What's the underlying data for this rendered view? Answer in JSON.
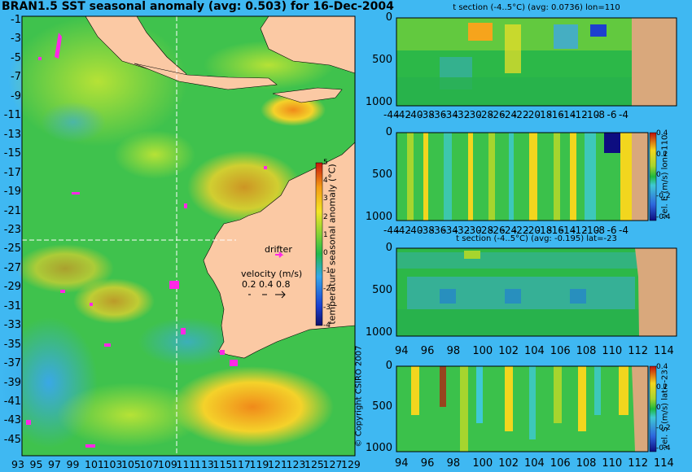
{
  "title": "BRAN1.5 SST seasonal anomaly (avg: 0.503) for 16-Dec-2004",
  "copyright": "© Copyright CSIRO 2007",
  "chart_data": [
    {
      "type": "heatmap",
      "title": "BRAN1.5 SST seasonal anomaly (avg: 0.503) for 16-Dec-2004",
      "x_ticks": [
        "93",
        "95",
        "97",
        "99",
        "101",
        "103",
        "105",
        "107",
        "109",
        "111",
        "113",
        "115",
        "117",
        "119",
        "121",
        "123",
        "125",
        "127",
        "129"
      ],
      "y_ticks": [
        "-1",
        "-3",
        "-5",
        "-7",
        "-9",
        "-11",
        "-13",
        "-15",
        "-17",
        "-19",
        "-21",
        "-23",
        "-25",
        "-27",
        "-29",
        "-31",
        "-33",
        "-35",
        "-37",
        "-39",
        "-41",
        "-43",
        "-45"
      ],
      "xlim": [
        93,
        130
      ],
      "ylim": [
        -45,
        0
      ],
      "colorbar": {
        "label": "temperature seasonal anomaly (°C)",
        "ticks": [
          "5",
          "4",
          "3",
          "2",
          "1",
          "0",
          "-1",
          "-2",
          "-3",
          "-4"
        ],
        "range": [
          -4,
          5
        ]
      },
      "legend": {
        "drifter": "drifter",
        "velocity_title": "velocity (m/s)",
        "velocity_values": "0.2 0.4 0.8"
      },
      "section_lines": {
        "lon": 110,
        "lat": -23
      }
    },
    {
      "type": "heatmap",
      "title": "t section (-4..5°C) (avg: 0.0736) lon=110",
      "x_ticks": [
        "-44",
        "-42",
        "-40",
        "-38",
        "-36",
        "-34",
        "-32",
        "-30",
        "-28",
        "-26",
        "-24",
        "-22",
        "-20",
        "-18",
        "-16",
        "-14",
        "-12",
        "-10",
        "-8",
        "-6",
        "-4"
      ],
      "y_ticks": [
        "0",
        "500",
        "1000"
      ]
    },
    {
      "type": "heatmap",
      "title": "",
      "x_ticks": [
        "-44",
        "-42",
        "-40",
        "-38",
        "-36",
        "-34",
        "-32",
        "-30",
        "-28",
        "-26",
        "-24",
        "-22",
        "-20",
        "-18",
        "-16",
        "-14",
        "-12",
        "-10",
        "-8",
        "-6",
        "-4"
      ],
      "y_ticks": [
        "0",
        "500",
        "1000"
      ],
      "colorbar": {
        "label": "vel. E (m/s) lon=110",
        "ticks": [
          "0.4",
          "0.2",
          "0",
          "-0.2",
          "-0.4"
        ],
        "range": [
          -0.4,
          0.4
        ]
      }
    },
    {
      "type": "heatmap",
      "title": "t section (-4..5°C) (avg: -0.195) lat=-23",
      "x_ticks": [
        "94",
        "96",
        "98",
        "100",
        "102",
        "104",
        "106",
        "108",
        "110",
        "112",
        "114"
      ],
      "y_ticks": [
        "0",
        "500",
        "1000"
      ]
    },
    {
      "type": "heatmap",
      "title": "",
      "x_ticks": [
        "94",
        "96",
        "98",
        "100",
        "102",
        "104",
        "106",
        "108",
        "110",
        "112",
        "114"
      ],
      "y_ticks": [
        "0",
        "500",
        "1000"
      ],
      "colorbar": {
        "label": "vel. S (m/s) lat=-23",
        "ticks": [
          "0.4",
          "0.2",
          "0",
          "-0.2",
          "-0.4"
        ],
        "range": [
          -0.4,
          0.4
        ]
      }
    }
  ]
}
